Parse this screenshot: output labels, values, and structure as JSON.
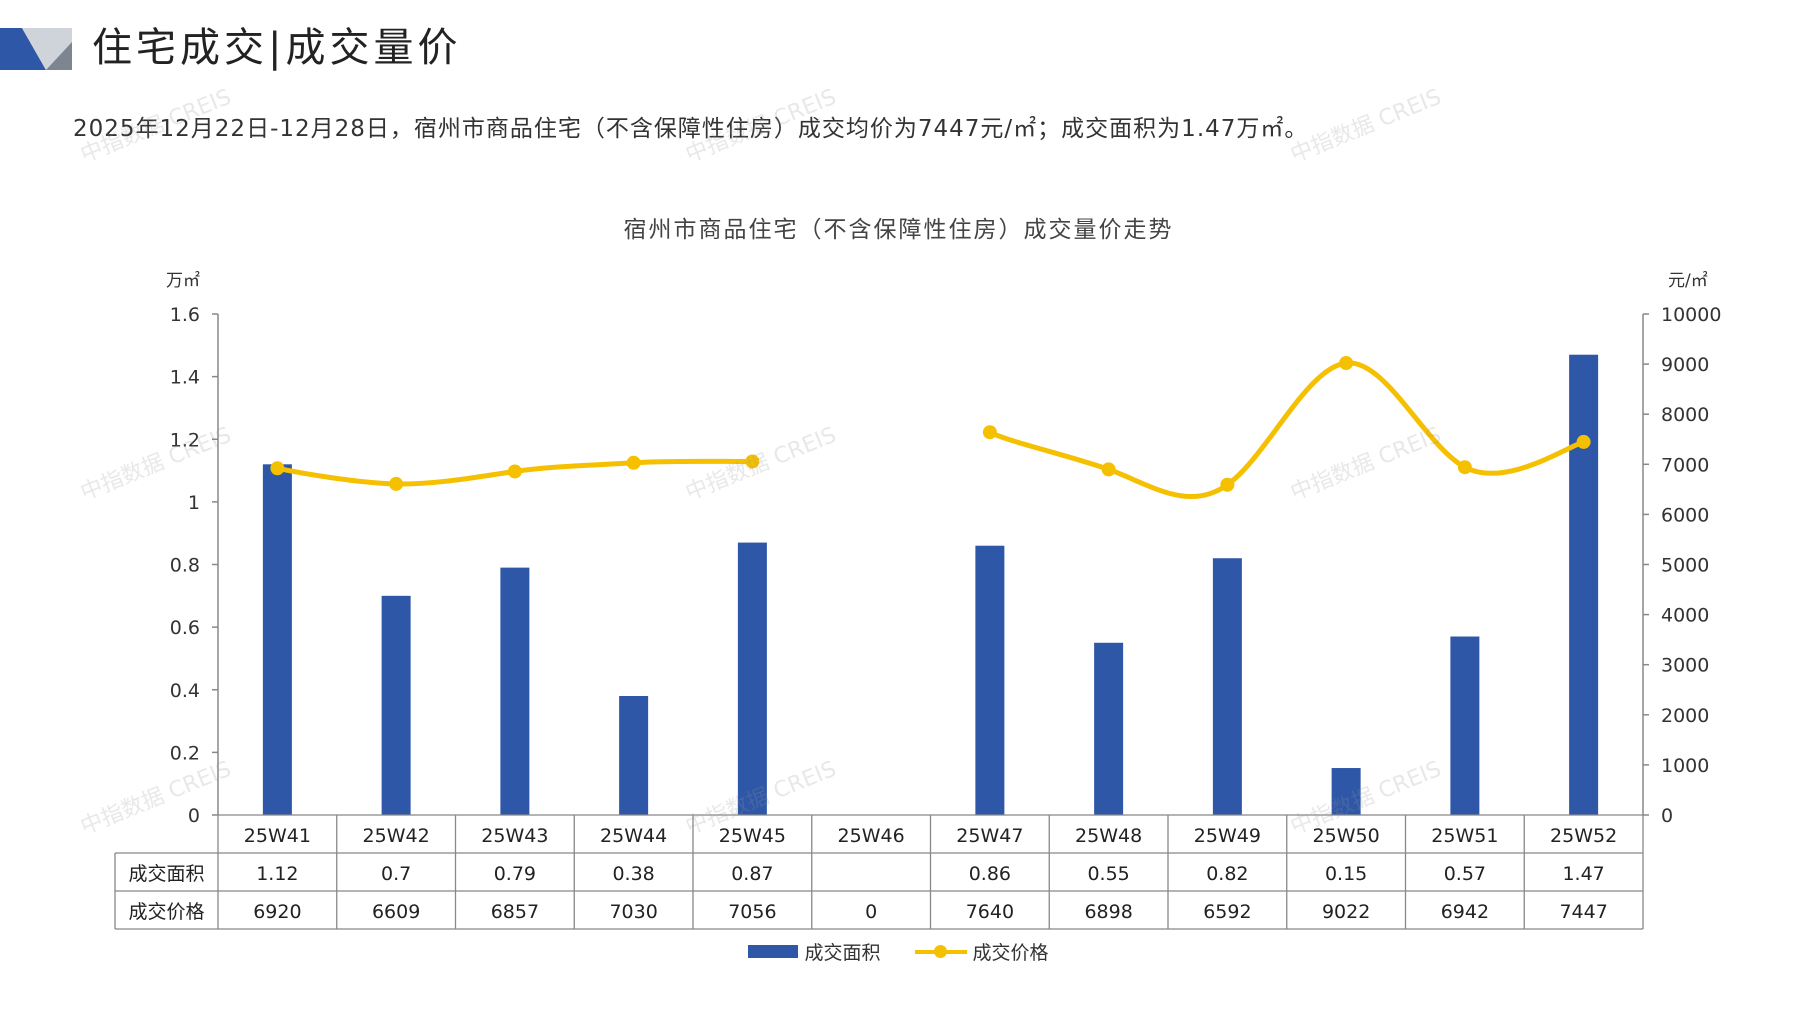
{
  "header": {
    "title": "住宅成交|成交量价"
  },
  "summary": "2025年12月22日-12月28日，宿州市商品住宅（不含保障性住房）成交均价为7447元/㎡；成交面积为1.47万㎡。",
  "watermark": "中指数据 CREIS",
  "colors": {
    "bar": "#2e57a8",
    "line": "#f5c000",
    "logo_blue": "#2e57a8",
    "logo_grey": "#cfd3da"
  },
  "chart_data": {
    "type": "bar",
    "title": "宿州市商品住宅（不含保障性住房）成交量价走势",
    "y_left_label": "万㎡",
    "y_right_label": "元/㎡",
    "y_left_ticks": [
      "0",
      "0.2",
      "0.4",
      "0.6",
      "0.8",
      "1",
      "1.2",
      "1.4",
      "1.6"
    ],
    "y_right_ticks": [
      "0",
      "1000",
      "2000",
      "3000",
      "4000",
      "5000",
      "6000",
      "7000",
      "8000",
      "9000",
      "10000"
    ],
    "ylim_left": [
      0,
      1.6
    ],
    "ylim_right": [
      0,
      10000
    ],
    "categories": [
      "25W41",
      "25W42",
      "25W43",
      "25W44",
      "25W45",
      "25W46",
      "25W47",
      "25W48",
      "25W49",
      "25W50",
      "25W51",
      "25W52"
    ],
    "series": [
      {
        "name": "成交面积",
        "type": "bar",
        "axis": "left",
        "values": [
          1.12,
          0.7,
          0.79,
          0.38,
          0.87,
          null,
          0.86,
          0.55,
          0.82,
          0.15,
          0.57,
          1.47
        ],
        "labels": [
          "1.12",
          "0.7",
          "0.79",
          "0.38",
          "0.87",
          "",
          "0.86",
          "0.55",
          "0.82",
          "0.15",
          "0.57",
          "1.47"
        ]
      },
      {
        "name": "成交价格",
        "type": "line",
        "axis": "right",
        "smooth": true,
        "values": [
          6920,
          6609,
          6857,
          7030,
          7056,
          0,
          7640,
          6898,
          6592,
          9022,
          6942,
          7447
        ],
        "labels": [
          "6920",
          "6609",
          "6857",
          "7030",
          "7056",
          "0",
          "7640",
          "6898",
          "6592",
          "9022",
          "6942",
          "7447"
        ]
      }
    ],
    "legend_position": "bottom"
  }
}
